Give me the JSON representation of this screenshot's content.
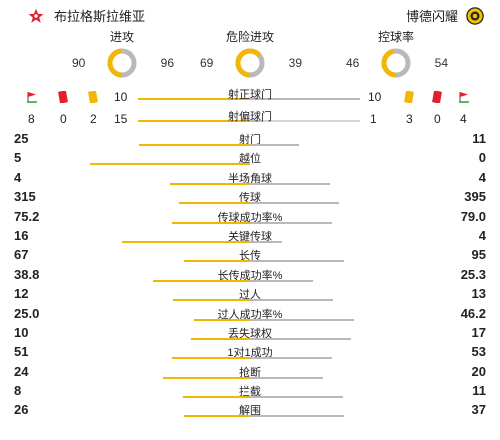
{
  "teams": {
    "home": "布拉格斯拉维亚",
    "away": "博德闪耀",
    "home_logo_icon": "red-star-crest-icon",
    "away_logo_icon": "yellow-crest-icon",
    "home_color": "#e0202c",
    "away_color": "#f2c200"
  },
  "colors": {
    "home_bar": "#f2b705",
    "away_bar": "#b9b9b9",
    "track": "#d6d6d6"
  },
  "donuts": [
    {
      "title": "进攻",
      "home": "90",
      "away": "96",
      "home_value": 90,
      "away_value": 96
    },
    {
      "title": "危险进攻",
      "home": "69",
      "away": "39",
      "home_value": 69,
      "away_value": 39
    },
    {
      "title": "控球率",
      "home": "46",
      "away": "54",
      "home_value": 46,
      "away_value": 54
    }
  ],
  "cards": {
    "icons": [
      "corner-flag-icon",
      "red-card-icon",
      "yellow-card-icon"
    ],
    "shots_on_target": {
      "label": "射正球门",
      "home": "10",
      "away": "10",
      "home_value": 10,
      "away_value": 10
    },
    "shots_off_target": {
      "label": "射偏球门",
      "home": "15",
      "away": "1",
      "home_value": 15,
      "away_value": 1
    },
    "home_counts": {
      "corners": "8",
      "red": "0",
      "yellow": "2"
    },
    "away_counts": {
      "yellow": "3",
      "red": "0",
      "corners": "4"
    }
  },
  "stats": [
    {
      "label": "射门",
      "home": "25",
      "away": "11",
      "home_value": 25,
      "away_value": 11
    },
    {
      "label": "越位",
      "home": "5",
      "away": "0",
      "home_value": 5,
      "away_value": 0
    },
    {
      "label": "半场角球",
      "home": "4",
      "away": "4",
      "home_value": 4,
      "away_value": 4
    },
    {
      "label": "传球",
      "home": "315",
      "away": "395",
      "home_value": 315,
      "away_value": 395
    },
    {
      "label": "传球成功率%",
      "home": "75.2",
      "away": "79.0",
      "home_value": 75.2,
      "away_value": 79.0
    },
    {
      "label": "关键传球",
      "home": "16",
      "away": "4",
      "home_value": 16,
      "away_value": 4
    },
    {
      "label": "长传",
      "home": "67",
      "away": "95",
      "home_value": 67,
      "away_value": 95
    },
    {
      "label": "长传成功率%",
      "home": "38.8",
      "away": "25.3",
      "home_value": 38.8,
      "away_value": 25.3
    },
    {
      "label": "过人",
      "home": "12",
      "away": "13",
      "home_value": 12,
      "away_value": 13
    },
    {
      "label": "过人成功率%",
      "home": "25.0",
      "away": "46.2",
      "home_value": 25.0,
      "away_value": 46.2
    },
    {
      "label": "丢失球权",
      "home": "10",
      "away": "17",
      "home_value": 10,
      "away_value": 17
    },
    {
      "label": "1对1成功",
      "home": "51",
      "away": "53",
      "home_value": 51,
      "away_value": 53
    },
    {
      "label": "抢断",
      "home": "24",
      "away": "20",
      "home_value": 24,
      "away_value": 20
    },
    {
      "label": "拦截",
      "home": "8",
      "away": "11",
      "home_value": 8,
      "away_value": 11
    },
    {
      "label": "解围",
      "home": "26",
      "away": "37",
      "home_value": 26,
      "away_value": 37
    }
  ]
}
